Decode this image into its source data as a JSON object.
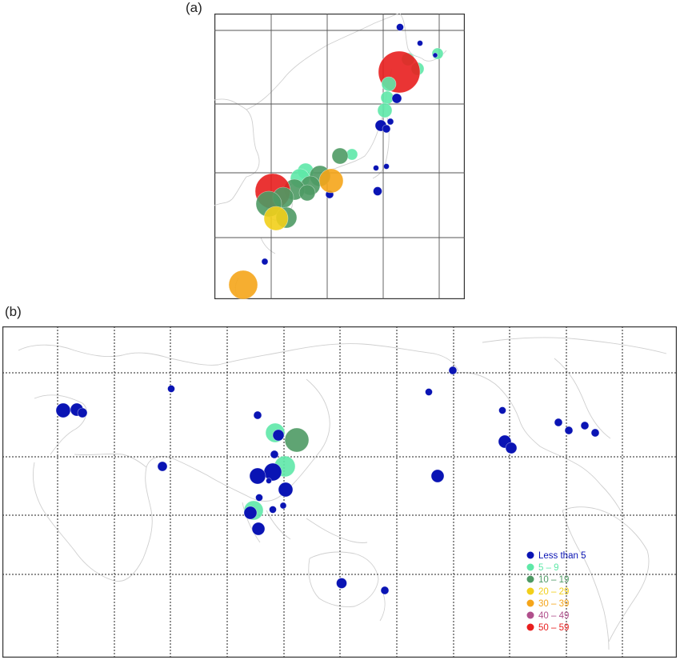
{
  "panels": {
    "a": {
      "label": "(a)"
    },
    "b": {
      "label": "(b)"
    }
  },
  "legend": {
    "items": [
      {
        "label": "Less than 5",
        "color": "#0a14b4"
      },
      {
        "label": "5 – 9",
        "color": "#5ee8a8"
      },
      {
        "label": "10 – 19",
        "color": "#4e9a64"
      },
      {
        "label": "20 – 29",
        "color": "#f2cf1a"
      },
      {
        "label": "30 – 39",
        "color": "#f5a51a"
      },
      {
        "label": "40 – 49",
        "color": "#b0508c"
      },
      {
        "label": "50 – 59",
        "color": "#e81e1e"
      }
    ]
  }
}
